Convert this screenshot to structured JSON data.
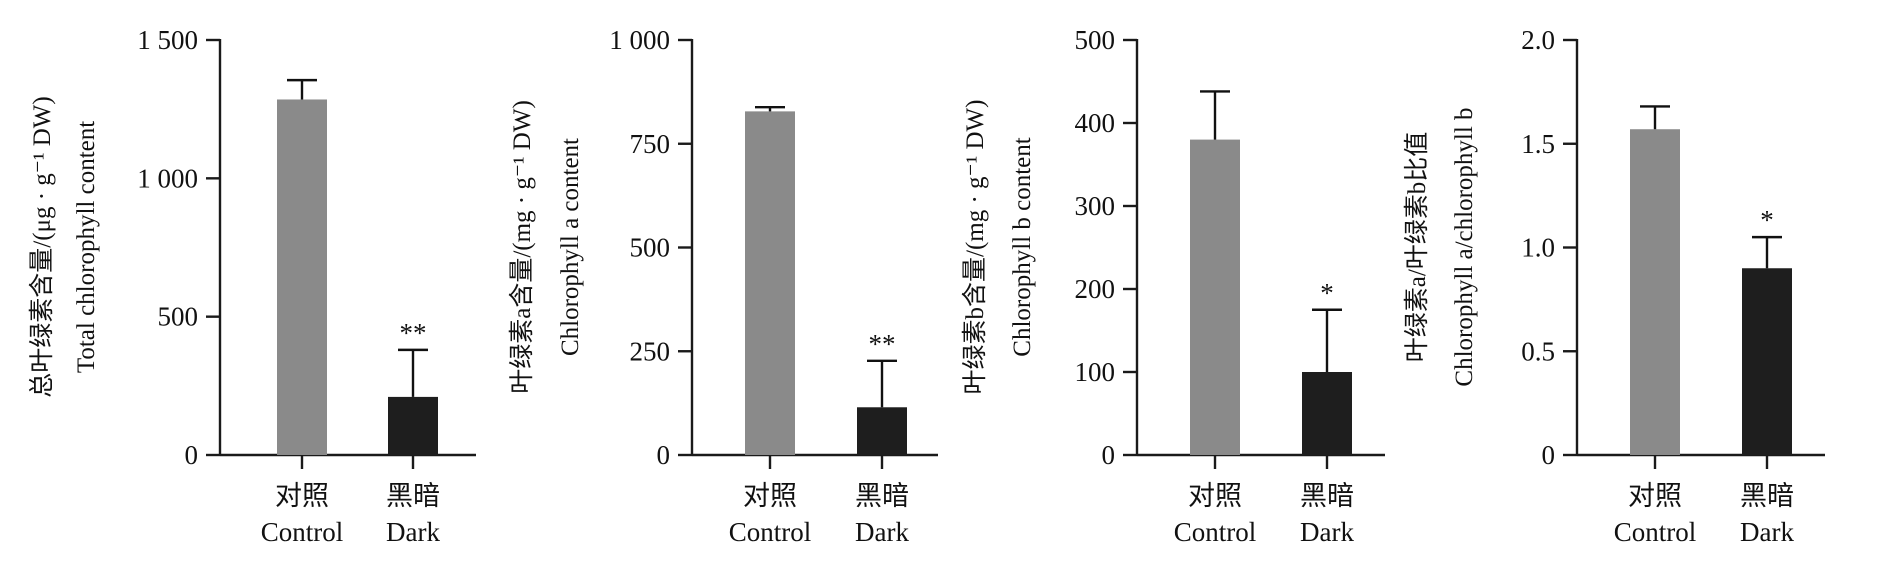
{
  "colors": {
    "control": "#8a8a8a",
    "dark": "#1e1e1e",
    "axis": "#1a1a1a"
  },
  "chart_data": [
    {
      "type": "bar",
      "title": "",
      "ylabel_cn": "总叶绿素含量/(μg · g⁻¹ DW)",
      "ylabel_en": "Total chlorophyll content",
      "ylim": [
        0,
        1500
      ],
      "yticks": [
        0,
        500,
        1000,
        1500
      ],
      "yticklabels": [
        "0",
        "500",
        "1 000",
        "1 500"
      ],
      "categories": [
        "Control",
        "Dark"
      ],
      "categories_cn": [
        "对照",
        "黑暗"
      ],
      "values": [
        1285,
        210
      ],
      "errors": [
        70,
        170
      ],
      "significance": [
        "",
        "**"
      ]
    },
    {
      "type": "bar",
      "title": "",
      "ylabel_cn": "叶绿素a含量/(mg · g⁻¹ DW)",
      "ylabel_en": "Chlorophyll a content",
      "ylim": [
        0,
        1000
      ],
      "yticks": [
        0,
        250,
        500,
        750,
        1000
      ],
      "yticklabels": [
        "0",
        "250",
        "500",
        "750",
        "1 000"
      ],
      "categories": [
        "Control",
        "Dark"
      ],
      "categories_cn": [
        "对照",
        "黑暗"
      ],
      "values": [
        828,
        115
      ],
      "errors": [
        10,
        112
      ],
      "significance": [
        "",
        "**"
      ]
    },
    {
      "type": "bar",
      "title": "",
      "ylabel_cn": "叶绿素b含量/(mg · g⁻¹ DW)",
      "ylabel_en": "Chlorophyll b content",
      "ylim": [
        0,
        500
      ],
      "yticks": [
        0,
        100,
        200,
        300,
        400,
        500
      ],
      "yticklabels": [
        "0",
        "100",
        "200",
        "300",
        "400",
        "500"
      ],
      "categories": [
        "Control",
        "Dark"
      ],
      "categories_cn": [
        "对照",
        "黑暗"
      ],
      "values": [
        380,
        100
      ],
      "errors": [
        58,
        75
      ],
      "significance": [
        "",
        "*"
      ]
    },
    {
      "type": "bar",
      "title": "",
      "ylabel_cn": "叶绿素a/叶绿素b比值",
      "ylabel_en": "Chlorophyll a/chlorophyll b",
      "ylim": [
        0,
        2.0
      ],
      "yticks": [
        0,
        0.5,
        1.0,
        1.5,
        2.0
      ],
      "yticklabels": [
        "0",
        "0.5",
        "1.0",
        "1.5",
        "2.0"
      ],
      "categories": [
        "Control",
        "Dark"
      ],
      "categories_cn": [
        "对照",
        "黑暗"
      ],
      "values": [
        1.57,
        0.9
      ],
      "errors": [
        0.11,
        0.15
      ],
      "significance": [
        "",
        "*"
      ]
    }
  ]
}
